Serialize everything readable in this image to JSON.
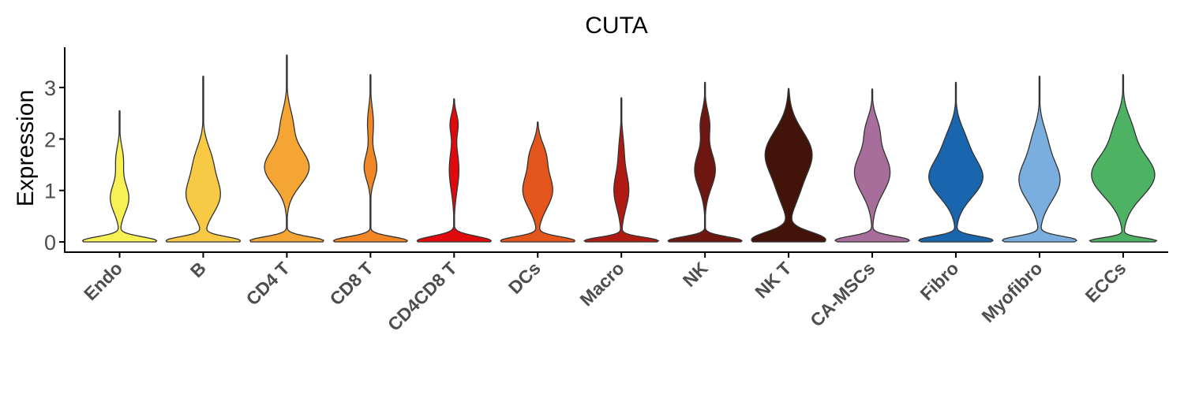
{
  "chart_data": {
    "type": "violin",
    "title": "CUTA",
    "xlabel": "",
    "ylabel": "Expression",
    "ylim": [
      -0.2,
      3.8
    ],
    "yticks": [
      0,
      1,
      2,
      3
    ],
    "grid": false,
    "legend": "none",
    "categories": [
      "Endo",
      "B",
      "CD4 T",
      "CD8 T",
      "CD4CD8 T",
      "DCs",
      "Macro",
      "NK",
      "NK T",
      "CA-MSCs",
      "Fibro",
      "Myofibro",
      "ECCs"
    ],
    "colors": [
      "#F7F156",
      "#F7C944",
      "#F4A533",
      "#F08626",
      "#E0090E",
      "#E4551C",
      "#AF1B12",
      "#6E1710",
      "#411309",
      "#A76E9C",
      "#1965AE",
      "#7AAEDE",
      "#4DB263"
    ],
    "series": [
      {
        "max": 2.55,
        "peaks": [
          {
            "y": 0.02,
            "w": 1.0,
            "s": 0.08
          },
          {
            "y": 0.85,
            "w": 0.25,
            "s": 0.28
          },
          {
            "y": 1.6,
            "w": 0.1,
            "s": 0.25
          }
        ]
      },
      {
        "max": 3.22,
        "peaks": [
          {
            "y": 0.02,
            "w": 1.0,
            "s": 0.08
          },
          {
            "y": 0.9,
            "w": 0.45,
            "s": 0.35
          },
          {
            "y": 1.6,
            "w": 0.2,
            "s": 0.3
          }
        ]
      },
      {
        "max": 3.63,
        "peaks": [
          {
            "y": 0.02,
            "w": 1.0,
            "s": 0.08
          },
          {
            "y": 1.45,
            "w": 0.6,
            "s": 0.35
          },
          {
            "y": 2.3,
            "w": 0.15,
            "s": 0.3
          }
        ]
      },
      {
        "max": 3.25,
        "peaks": [
          {
            "y": 0.02,
            "w": 1.0,
            "s": 0.08
          },
          {
            "y": 1.45,
            "w": 0.17,
            "s": 0.25
          },
          {
            "y": 2.3,
            "w": 0.08,
            "s": 0.3
          }
        ]
      },
      {
        "max": 2.78,
        "peaks": [
          {
            "y": 0.02,
            "w": 1.0,
            "s": 0.09
          },
          {
            "y": 1.4,
            "w": 0.13,
            "s": 0.4
          },
          {
            "y": 2.3,
            "w": 0.1,
            "s": 0.2
          }
        ]
      },
      {
        "max": 2.33,
        "peaks": [
          {
            "y": 0.02,
            "w": 1.0,
            "s": 0.08
          },
          {
            "y": 1.0,
            "w": 0.4,
            "s": 0.35
          },
          {
            "y": 1.7,
            "w": 0.18,
            "s": 0.25
          }
        ]
      },
      {
        "max": 2.8,
        "peaks": [
          {
            "y": 0.02,
            "w": 1.0,
            "s": 0.07
          },
          {
            "y": 1.0,
            "w": 0.2,
            "s": 0.35
          },
          {
            "y": 1.8,
            "w": 0.06,
            "s": 0.3
          }
        ]
      },
      {
        "max": 3.1,
        "peaks": [
          {
            "y": 0.02,
            "w": 1.0,
            "s": 0.08
          },
          {
            "y": 1.4,
            "w": 0.28,
            "s": 0.35
          },
          {
            "y": 2.3,
            "w": 0.12,
            "s": 0.25
          }
        ]
      },
      {
        "max": 2.98,
        "peaks": [
          {
            "y": 0.04,
            "w": 1.0,
            "s": 0.15
          },
          {
            "y": 1.7,
            "w": 0.63,
            "s": 0.45
          },
          {
            "y": 0.9,
            "w": 0.15,
            "s": 0.3
          }
        ]
      },
      {
        "max": 2.97,
        "peaks": [
          {
            "y": 0.03,
            "w": 1.0,
            "s": 0.08
          },
          {
            "y": 1.35,
            "w": 0.48,
            "s": 0.4
          },
          {
            "y": 2.2,
            "w": 0.15,
            "s": 0.25
          }
        ]
      },
      {
        "max": 3.1,
        "peaks": [
          {
            "y": 0.03,
            "w": 1.0,
            "s": 0.08
          },
          {
            "y": 1.25,
            "w": 0.72,
            "s": 0.38
          },
          {
            "y": 2.0,
            "w": 0.2,
            "s": 0.3
          }
        ]
      },
      {
        "max": 3.22,
        "peaks": [
          {
            "y": 0.03,
            "w": 1.0,
            "s": 0.08
          },
          {
            "y": 1.2,
            "w": 0.55,
            "s": 0.4
          },
          {
            "y": 2.0,
            "w": 0.15,
            "s": 0.3
          }
        ]
      },
      {
        "max": 3.25,
        "peaks": [
          {
            "y": 0.02,
            "w": 0.9,
            "s": 0.06
          },
          {
            "y": 1.3,
            "w": 0.85,
            "s": 0.42
          },
          {
            "y": 2.2,
            "w": 0.2,
            "s": 0.3
          }
        ]
      }
    ]
  }
}
